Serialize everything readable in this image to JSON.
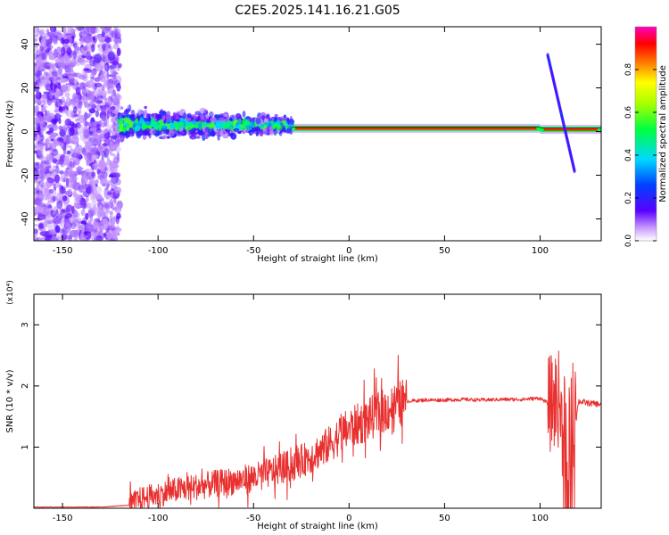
{
  "title": "C2E5.2025.141.16.21.G05",
  "colors": {
    "snr_line": "#e8302f",
    "axis": "#000000",
    "background": "#ffffff"
  },
  "chart_data": [
    {
      "type": "heatmap",
      "ylabel": "Frequency (Hz)",
      "xlabel": "Height of straight line (km)",
      "xlim": [
        -165,
        132
      ],
      "ylim": [
        -50,
        48
      ],
      "x_ticks": [
        "-150",
        "-100",
        "-50",
        "0",
        "50",
        "100"
      ],
      "y_ticks": [
        "-40",
        "-20",
        "0",
        "20",
        "40"
      ],
      "grid": false,
      "colorbar": {
        "label": "Normalized spectral amplitude",
        "range": [
          0,
          1
        ],
        "ticks": [
          "0.0",
          "0.2",
          "0.4",
          "0.6",
          "0.8"
        ],
        "colormap": "rainbow (purple-blue-cyan-green-yellow-red-magenta)"
      },
      "features": [
        {
          "x_range": [
            -165,
            -120
          ],
          "freq_range": [
            -50,
            48
          ],
          "amplitude": "scattered 0.0-0.3"
        },
        {
          "x_range": [
            -120,
            -30
          ],
          "freq_center": 3,
          "freq_spread": 6,
          "amplitude": "0.3-0.6"
        },
        {
          "x_range": [
            -30,
            100
          ],
          "freq_center": 1.5,
          "freq_spread": 1,
          "amplitude": "0.8-0.95"
        },
        {
          "x_range": [
            100,
            132
          ],
          "freq_center": 1,
          "freq_spread": 1,
          "amplitude": "0.6-0.9"
        },
        {
          "x_range": [
            104,
            118
          ],
          "freq_from": 35,
          "freq_to": -18,
          "amplitude": "0.1-0.3",
          "shape": "diagonal streak"
        }
      ]
    },
    {
      "type": "line",
      "ylabel": "SNR (10 * v/v)",
      "multiplier": "(x10⁴)",
      "xlabel": "Height of straight line (km)",
      "xlim": [
        -165,
        132
      ],
      "ylim": [
        0,
        3.5
      ],
      "x_ticks": [
        "-150",
        "-100",
        "-50",
        "0",
        "50",
        "100"
      ],
      "y_ticks": [
        "1",
        "2",
        "3"
      ],
      "grid": false,
      "series": [
        {
          "x": [
            -165,
            -130,
            -115,
            -110,
            -100,
            -90,
            -80,
            -70,
            -60,
            -50,
            -40,
            -30,
            -20,
            -10,
            -5,
            0,
            10,
            20,
            30,
            40,
            50,
            60,
            70,
            80,
            90,
            100,
            105,
            110,
            115,
            120,
            125,
            132
          ],
          "values": [
            0.02,
            0.02,
            0.05,
            0.15,
            0.22,
            0.3,
            0.35,
            0.4,
            0.45,
            0.5,
            0.6,
            0.7,
            0.85,
            1.05,
            1.2,
            1.3,
            1.45,
            1.62,
            1.75,
            1.77,
            1.77,
            1.78,
            1.77,
            1.78,
            1.78,
            1.8,
            1.7,
            1.8,
            0.2,
            1.75,
            1.72,
            1.7
          ]
        }
      ]
    }
  ]
}
